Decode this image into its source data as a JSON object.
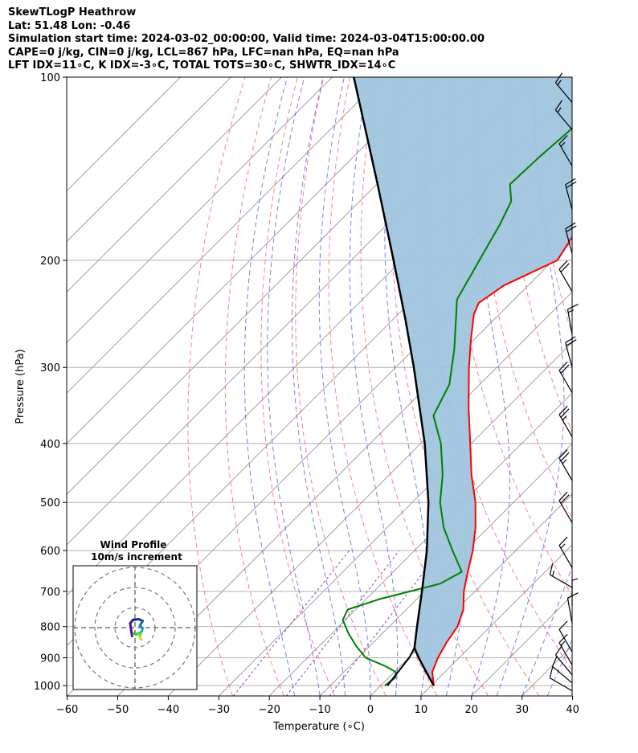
{
  "header": {
    "line1": "SkewTLogP Heathrow",
    "line2": "Lat: 51.48   Lon: -0.46",
    "line3": "Simulation start time: 2024-03-02_00:00:00, Valid time: 2024-03-04T15:00:00.00",
    "line4": "CAPE=0 j/kg, CIN=0 j/kg, LCL=867 hPa, LFC=nan hPa, EQ=nan hPa",
    "line5": "LFT IDX=11∘C, K IDX=-3∘C, TOTAL TOTS=30∘C, SHWTR_IDX=14∘C"
  },
  "colors": {
    "temperature": "#ff0000",
    "dewpoint": "#008000",
    "parcel": "#000000",
    "cape_fill": "#a0c4de",
    "dry_adiabat": "#ff6060",
    "moist_adiabat": "#5060ff",
    "mixing_ratio": "#9040c0",
    "isotherm": "#a0a0a0"
  },
  "chart_data": [
    {
      "type": "line",
      "title": "",
      "xlabel": "Temperature (∘C)",
      "ylabel": "Pressure (hPa)",
      "xlim": [
        -60,
        40
      ],
      "ylim": [
        1040,
        100
      ],
      "y_scale": "log",
      "skew": "isotherms skewed 45°",
      "grid": true,
      "x_ticks": [
        "−60",
        "−50",
        "−40",
        "−30",
        "−20",
        "−10",
        "0",
        "10",
        "20",
        "30",
        "40"
      ],
      "y_ticks": [
        "100",
        "200",
        "300",
        "400",
        "500",
        "600",
        "700",
        "800",
        "900",
        "1000"
      ],
      "series": [
        {
          "name": "temperature",
          "points": [
            {
              "p": 1000,
              "t": 10.5
            },
            {
              "p": 950,
              "t": 7.5
            },
            {
              "p": 900,
              "t": 5.8
            },
            {
              "p": 850,
              "t": 4.5
            },
            {
              "p": 800,
              "t": 3.5
            },
            {
              "p": 750,
              "t": 1.3
            },
            {
              "p": 700,
              "t": -2.2
            },
            {
              "p": 650,
              "t": -5.3
            },
            {
              "p": 600,
              "t": -8.5
            },
            {
              "p": 550,
              "t": -12.5
            },
            {
              "p": 500,
              "t": -17.5
            },
            {
              "p": 450,
              "t": -23.8
            },
            {
              "p": 400,
              "t": -30.2
            },
            {
              "p": 350,
              "t": -37.5
            },
            {
              "p": 300,
              "t": -45.5
            },
            {
              "p": 270,
              "t": -50.6
            },
            {
              "p": 245,
              "t": -55.1
            },
            {
              "p": 235,
              "t": -56.3
            },
            {
              "p": 220,
              "t": -54.8
            },
            {
              "p": 200,
              "t": -49.2
            },
            {
              "p": 180,
              "t": -51.2
            },
            {
              "p": 165,
              "t": -52.2
            },
            {
              "p": 150,
              "t": -52.6
            },
            {
              "p": 135,
              "t": -51.8
            },
            {
              "p": 125,
              "t": -50.3
            },
            {
              "p": 115,
              "t": -50.9
            },
            {
              "p": 100,
              "t": -52.7
            }
          ]
        },
        {
          "name": "dewpoint",
          "points": [
            {
              "p": 1000,
              "t": 0.8
            },
            {
              "p": 970,
              "t": 1.3
            },
            {
              "p": 950,
              "t": 0.3
            },
            {
              "p": 930,
              "t": -2.8
            },
            {
              "p": 900,
              "t": -8.5
            },
            {
              "p": 860,
              "t": -12.8
            },
            {
              "p": 820,
              "t": -16.8
            },
            {
              "p": 780,
              "t": -20.5
            },
            {
              "p": 750,
              "t": -21.6
            },
            {
              "p": 720,
              "t": -17.2
            },
            {
              "p": 680,
              "t": -8.4
            },
            {
              "p": 650,
              "t": -6.5
            },
            {
              "p": 600,
              "t": -12.5
            },
            {
              "p": 550,
              "t": -18.8
            },
            {
              "p": 500,
              "t": -24.5
            },
            {
              "p": 450,
              "t": -29.5
            },
            {
              "p": 400,
              "t": -36.0
            },
            {
              "p": 360,
              "t": -43.0
            },
            {
              "p": 320,
              "t": -46.0
            },
            {
              "p": 280,
              "t": -52.0
            },
            {
              "p": 245,
              "t": -58.6
            },
            {
              "p": 232,
              "t": -61.3
            },
            {
              "p": 215,
              "t": -63.0
            },
            {
              "p": 195,
              "t": -65.2
            },
            {
              "p": 175,
              "t": -67.6
            },
            {
              "p": 160,
              "t": -70.0
            },
            {
              "p": 150,
              "t": -73.6
            },
            {
              "p": 135,
              "t": -73.2
            },
            {
              "p": 115,
              "t": -72.0
            },
            {
              "p": 100,
              "t": -71.2
            }
          ]
        },
        {
          "name": "parcel",
          "points": [
            {
              "p": 1000,
              "t": 10.5
            },
            {
              "p": 950,
              "t": 6.3
            },
            {
              "p": 900,
              "t": 2.0
            },
            {
              "p": 867,
              "t": -0.8
            },
            {
              "p": 800,
              "t": -4.5
            },
            {
              "p": 700,
              "t": -10.5
            },
            {
              "p": 600,
              "t": -17.6
            },
            {
              "p": 500,
              "t": -26.8
            },
            {
              "p": 400,
              "t": -39.2
            },
            {
              "p": 300,
              "t": -56.4
            },
            {
              "p": 250,
              "t": -67.6
            },
            {
              "p": 200,
              "t": -81.6
            },
            {
              "p": 150,
              "t": -99.8
            },
            {
              "p": 100,
              "t": -125.7
            }
          ]
        },
        {
          "name": "dewpoint-to-lcl",
          "points": [
            {
              "p": 1000,
              "t": 1.3
            },
            {
              "p": 900,
              "t": 0.1
            },
            {
              "p": 867,
              "t": -0.8
            }
          ]
        }
      ],
      "wind_barbs": [
        {
          "p": 1020,
          "speed_kt": 10,
          "dir_deg": 300
        },
        {
          "p": 990,
          "speed_kt": 10,
          "dir_deg": 310
        },
        {
          "p": 960,
          "speed_kt": 10,
          "dir_deg": 320
        },
        {
          "p": 925,
          "speed_kt": 15,
          "dir_deg": 330
        },
        {
          "p": 880,
          "speed_kt": 10,
          "dir_deg": 330
        },
        {
          "p": 790,
          "speed_kt": 10,
          "dir_deg": 350
        },
        {
          "p": 740,
          "speed_kt": 5,
          "dir_deg": 360
        },
        {
          "p": 690,
          "speed_kt": 15,
          "dir_deg": 300
        },
        {
          "p": 640,
          "speed_kt": 15,
          "dir_deg": 330
        },
        {
          "p": 540,
          "speed_kt": 20,
          "dir_deg": 330
        },
        {
          "p": 460,
          "speed_kt": 25,
          "dir_deg": 330
        },
        {
          "p": 390,
          "speed_kt": 25,
          "dir_deg": 330
        },
        {
          "p": 330,
          "speed_kt": 20,
          "dir_deg": 330
        },
        {
          "p": 300,
          "speed_kt": 20,
          "dir_deg": 345
        },
        {
          "p": 265,
          "speed_kt": 15,
          "dir_deg": 350
        },
        {
          "p": 225,
          "speed_kt": 20,
          "dir_deg": 330
        },
        {
          "p": 195,
          "speed_kt": 20,
          "dir_deg": 345
        },
        {
          "p": 165,
          "speed_kt": 20,
          "dir_deg": 345
        },
        {
          "p": 140,
          "speed_kt": 15,
          "dir_deg": 330
        },
        {
          "p": 122,
          "speed_kt": 15,
          "dir_deg": 320
        },
        {
          "p": 110,
          "speed_kt": 15,
          "dir_deg": 320
        }
      ]
    },
    {
      "type": "line",
      "title": "Wind Profile",
      "subtitle": "10m/s increment",
      "rings_ms": [
        10,
        20,
        30
      ],
      "hodograph_points": [
        {
          "u": -1.2,
          "v": -3.5
        },
        {
          "u": -1.6,
          "v": -1.0
        },
        {
          "u": -2.0,
          "v": 1.8
        },
        {
          "u": -0.8,
          "v": 3.2
        },
        {
          "u": 1.6,
          "v": 3.5
        },
        {
          "u": 3.2,
          "v": 2.8
        },
        {
          "u": 2.0,
          "v": 0.8
        },
        {
          "u": 3.2,
          "v": -0.2
        },
        {
          "u": 2.8,
          "v": -1.6
        },
        {
          "u": 2.0,
          "v": -2.2
        },
        {
          "u": 0.8,
          "v": -2.6
        },
        {
          "u": -0.4,
          "v": -2.4
        },
        {
          "u": 0.4,
          "v": -2.8
        },
        {
          "u": 1.4,
          "v": -2.6
        },
        {
          "u": 2.4,
          "v": -3.0
        },
        {
          "u": 2.0,
          "v": -3.8
        },
        {
          "u": 2.2,
          "v": -4.8
        },
        {
          "u": 2.8,
          "v": -5.0
        }
      ]
    }
  ]
}
